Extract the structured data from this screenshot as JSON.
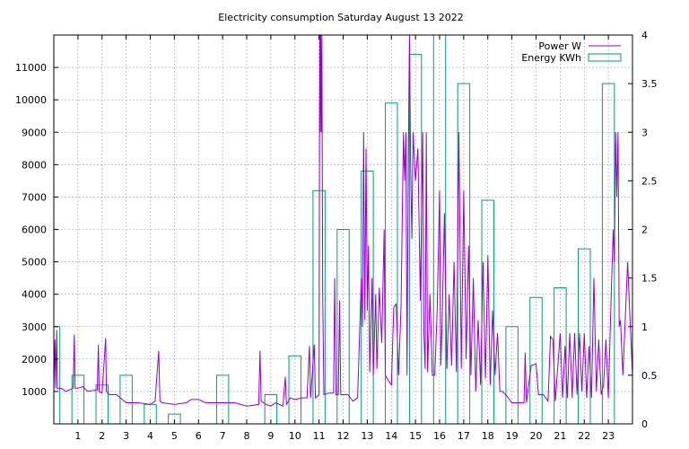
{
  "chart_data": {
    "type": "line",
    "title": "Electricity consumption Saturday August 13 2022",
    "xlabel": "",
    "ylabel": "",
    "y2label": "",
    "xlim": [
      0,
      24
    ],
    "ylim": [
      0,
      12000
    ],
    "y2lim": [
      0,
      4
    ],
    "x_ticks": [
      "1",
      "2",
      "3",
      "4",
      "5",
      "6",
      "7",
      "8",
      "9",
      "10",
      "11",
      "12",
      "13",
      "14",
      "15",
      "16",
      "17",
      "18",
      "19",
      "20",
      "21",
      "22",
      "23"
    ],
    "y_ticks": [
      "1000",
      "2000",
      "3000",
      "4000",
      "5000",
      "6000",
      "7000",
      "8000",
      "9000",
      "10000",
      "11000"
    ],
    "y2_ticks": [
      "0",
      "0.5",
      "1",
      "1.5",
      "2",
      "2.5",
      "3",
      "3.5",
      "4"
    ],
    "grid": true,
    "legend_position": "top-right",
    "colors": {
      "power": "#9400d3",
      "energy": "#009e73"
    },
    "series": [
      {
        "name": "Power W",
        "axis": "left",
        "style": "line",
        "points": [
          [
            0.0,
            1050
          ],
          [
            0.05,
            2600
          ],
          [
            0.08,
            1100
          ],
          [
            0.12,
            2900
          ],
          [
            0.15,
            1080
          ],
          [
            0.3,
            1100
          ],
          [
            0.5,
            1000
          ],
          [
            0.8,
            1100
          ],
          [
            0.85,
            2750
          ],
          [
            0.88,
            1100
          ],
          [
            1.0,
            1100
          ],
          [
            1.2,
            1150
          ],
          [
            1.4,
            1000
          ],
          [
            1.8,
            1050
          ],
          [
            1.85,
            2450
          ],
          [
            1.88,
            1000
          ],
          [
            2.0,
            950
          ],
          [
            2.15,
            2650
          ],
          [
            2.18,
            1000
          ],
          [
            2.3,
            900
          ],
          [
            2.6,
            900
          ],
          [
            3.0,
            650
          ],
          [
            3.5,
            650
          ],
          [
            4.0,
            600
          ],
          [
            4.2,
            700
          ],
          [
            4.35,
            2250
          ],
          [
            4.4,
            700
          ],
          [
            4.5,
            650
          ],
          [
            5.0,
            600
          ],
          [
            5.5,
            650
          ],
          [
            5.7,
            750
          ],
          [
            6.0,
            750
          ],
          [
            6.3,
            650
          ],
          [
            7.0,
            650
          ],
          [
            7.5,
            650
          ],
          [
            8.0,
            550
          ],
          [
            8.5,
            600
          ],
          [
            8.55,
            2250
          ],
          [
            8.6,
            700
          ],
          [
            8.8,
            600
          ],
          [
            9.0,
            550
          ],
          [
            9.2,
            650
          ],
          [
            9.5,
            550
          ],
          [
            9.6,
            1450
          ],
          [
            9.65,
            600
          ],
          [
            9.8,
            800
          ],
          [
            10.0,
            750
          ],
          [
            10.3,
            800
          ],
          [
            10.5,
            800
          ],
          [
            10.6,
            2400
          ],
          [
            10.65,
            800
          ],
          [
            10.8,
            2450
          ],
          [
            10.85,
            800
          ],
          [
            11.0,
            900
          ],
          [
            11.03,
            12000
          ],
          [
            11.05,
            9000
          ],
          [
            11.07,
            12000
          ],
          [
            11.1,
            9000
          ],
          [
            11.12,
            12000
          ],
          [
            11.15,
            4000
          ],
          [
            11.2,
            900
          ],
          [
            11.4,
            950
          ],
          [
            11.6,
            950
          ],
          [
            11.65,
            4500
          ],
          [
            11.7,
            900
          ],
          [
            11.8,
            900
          ],
          [
            11.85,
            3800
          ],
          [
            11.9,
            900
          ],
          [
            12.0,
            900
          ],
          [
            12.2,
            900
          ],
          [
            12.4,
            700
          ],
          [
            12.6,
            800
          ],
          [
            12.7,
            3200
          ],
          [
            12.75,
            4500
          ],
          [
            12.8,
            3000
          ],
          [
            12.85,
            9000
          ],
          [
            12.9,
            3200
          ],
          [
            12.95,
            8500
          ],
          [
            13.0,
            3500
          ],
          [
            13.05,
            5500
          ],
          [
            13.1,
            1600
          ],
          [
            13.2,
            4500
          ],
          [
            13.25,
            1500
          ],
          [
            13.35,
            4000
          ],
          [
            13.4,
            1700
          ],
          [
            13.5,
            4200
          ],
          [
            13.6,
            2500
          ],
          [
            13.7,
            6000
          ],
          [
            13.75,
            1500
          ],
          [
            13.9,
            1300
          ],
          [
            14.0,
            1200
          ],
          [
            14.1,
            3600
          ],
          [
            14.2,
            3700
          ],
          [
            14.3,
            1500
          ],
          [
            14.4,
            3600
          ],
          [
            14.5,
            9000
          ],
          [
            14.55,
            7500
          ],
          [
            14.6,
            9000
          ],
          [
            14.65,
            1500
          ],
          [
            14.7,
            8000
          ],
          [
            14.75,
            12000
          ],
          [
            14.8,
            7800
          ],
          [
            14.85,
            5700
          ],
          [
            14.9,
            9000
          ],
          [
            15.0,
            7500
          ],
          [
            15.1,
            8500
          ],
          [
            15.2,
            3800
          ],
          [
            15.3,
            9000
          ],
          [
            15.35,
            2800
          ],
          [
            15.4,
            1700
          ],
          [
            15.45,
            9000
          ],
          [
            15.5,
            1600
          ],
          [
            15.6,
            4000
          ],
          [
            15.7,
            1500
          ],
          [
            15.8,
            1500
          ],
          [
            15.9,
            3500
          ],
          [
            16.0,
            7200
          ],
          [
            16.05,
            1800
          ],
          [
            16.1,
            3000
          ],
          [
            16.2,
            6500
          ],
          [
            16.3,
            1700
          ],
          [
            16.4,
            4000
          ],
          [
            16.5,
            1800
          ],
          [
            16.6,
            5000
          ],
          [
            16.7,
            1600
          ],
          [
            16.8,
            9000
          ],
          [
            16.9,
            1700
          ],
          [
            17.0,
            7200
          ],
          [
            17.1,
            2000
          ],
          [
            17.2,
            5500
          ],
          [
            17.3,
            1500
          ],
          [
            17.4,
            4500
          ],
          [
            17.5,
            1000
          ],
          [
            17.6,
            3200
          ],
          [
            17.7,
            1200
          ],
          [
            17.8,
            5000
          ],
          [
            17.9,
            1400
          ],
          [
            18.0,
            5200
          ],
          [
            18.1,
            1200
          ],
          [
            18.2,
            3500
          ],
          [
            18.3,
            1500
          ],
          [
            18.4,
            2800
          ],
          [
            18.5,
            1000
          ],
          [
            18.6,
            1000
          ],
          [
            18.8,
            850
          ],
          [
            19.0,
            650
          ],
          [
            19.2,
            650
          ],
          [
            19.5,
            650
          ],
          [
            19.55,
            2200
          ],
          [
            19.6,
            650
          ],
          [
            19.8,
            1800
          ],
          [
            20.0,
            1850
          ],
          [
            20.1,
            900
          ],
          [
            20.3,
            900
          ],
          [
            20.5,
            700
          ],
          [
            20.6,
            2700
          ],
          [
            20.7,
            2600
          ],
          [
            20.8,
            700
          ],
          [
            21.0,
            2800
          ],
          [
            21.1,
            800
          ],
          [
            21.2,
            2400
          ],
          [
            21.3,
            800
          ],
          [
            21.4,
            2800
          ],
          [
            21.5,
            800
          ],
          [
            21.6,
            2800
          ],
          [
            21.7,
            900
          ],
          [
            21.8,
            2800
          ],
          [
            21.9,
            1000
          ],
          [
            22.0,
            2800
          ],
          [
            22.1,
            800
          ],
          [
            22.2,
            2400
          ],
          [
            22.3,
            800
          ],
          [
            22.4,
            4500
          ],
          [
            22.5,
            1000
          ],
          [
            22.6,
            2600
          ],
          [
            22.7,
            900
          ],
          [
            22.8,
            1200
          ],
          [
            22.9,
            2600
          ],
          [
            23.0,
            800
          ],
          [
            23.1,
            3500
          ],
          [
            23.2,
            6000
          ],
          [
            23.25,
            5000
          ],
          [
            23.3,
            9000
          ],
          [
            23.35,
            7000
          ],
          [
            23.4,
            9000
          ],
          [
            23.45,
            3000
          ],
          [
            23.5,
            3200
          ],
          [
            23.6,
            1500
          ],
          [
            23.7,
            3200
          ],
          [
            23.8,
            5000
          ],
          [
            23.9,
            3200
          ],
          [
            24.0,
            1500
          ]
        ]
      },
      {
        "name": "Energy KWh",
        "axis": "right",
        "style": "hollow-bars",
        "bar_width": 0.5,
        "x": [
          0,
          1,
          2,
          3,
          4,
          5,
          6,
          7,
          8,
          9,
          10,
          11,
          12,
          13,
          14,
          15,
          16,
          17,
          18,
          19,
          20,
          21,
          22,
          23
        ],
        "values": [
          1.0,
          0.5,
          0.4,
          0.5,
          0.2,
          0.1,
          0.0,
          0.5,
          0.0,
          0.3,
          0.7,
          2.4,
          2.0,
          2.6,
          3.3,
          3.8,
          4.0,
          3.5,
          2.3,
          1.0,
          1.3,
          1.4,
          1.8,
          3.5
        ]
      }
    ]
  }
}
